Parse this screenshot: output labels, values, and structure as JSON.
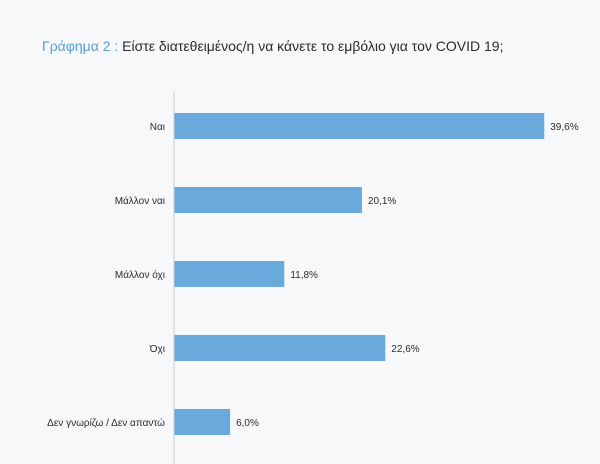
{
  "title": {
    "prefix": "Γράφημα 2 :",
    "text": "Είστε διατεθειμένος/η να κάνετε το εμβόλιο για τον COVID 19;"
  },
  "colors": {
    "bar": "#6aa9dc",
    "axis": "#c9cdd2",
    "text": "#2b2b2b",
    "accent": "#5b9bd5"
  },
  "chart_data": {
    "type": "bar",
    "orientation": "horizontal",
    "categories": [
      "Ναι",
      "Μάλλον ναι",
      "Μάλλον όχι",
      "Όχι",
      "Δεν γνωρίζω / Δεν απαντώ"
    ],
    "values": [
      39.6,
      20.1,
      11.8,
      22.6,
      6.0
    ],
    "value_labels": [
      "39,6%",
      "20,1%",
      "11,8%",
      "22,6%",
      "6,0%"
    ],
    "xlim": [
      0,
      40
    ],
    "grid": false,
    "legend": "none"
  }
}
